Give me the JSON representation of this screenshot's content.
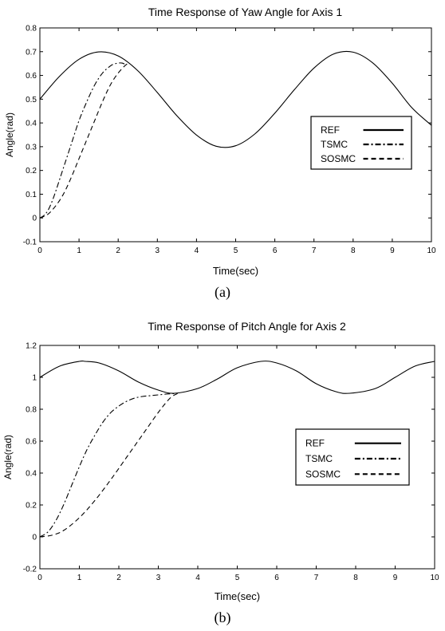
{
  "figure": {
    "caption_a": "(a)",
    "caption_b": "(b)"
  },
  "chart_data": [
    {
      "type": "line",
      "title": "Time Response of Yaw Angle for Axis 1",
      "xlabel": "Time(sec)",
      "ylabel": "Angle(rad)",
      "xlim": [
        0,
        10
      ],
      "ylim": [
        -0.1,
        0.8
      ],
      "xticks": [
        "0",
        "1",
        "2",
        "3",
        "4",
        "5",
        "6",
        "7",
        "8",
        "9",
        "10"
      ],
      "yticks": [
        "-0.1",
        "0",
        "0.1",
        "0.2",
        "0.3",
        "0.4",
        "0.5",
        "0.6",
        "0.7",
        "0.8"
      ],
      "grid": false,
      "legend_position": "right",
      "series": [
        {
          "name": "REF",
          "style": "solid",
          "x": [
            0,
            0.5,
            1,
            1.5,
            2,
            2.5,
            3,
            3.5,
            4,
            4.5,
            5,
            5.5,
            6,
            6.5,
            7,
            7.5,
            8,
            8.5,
            9,
            9.5,
            10
          ],
          "y": [
            0.5,
            0.596,
            0.668,
            0.699,
            0.682,
            0.62,
            0.528,
            0.43,
            0.349,
            0.302,
            0.304,
            0.355,
            0.441,
            0.54,
            0.631,
            0.69,
            0.698,
            0.653,
            0.567,
            0.464,
            0.39
          ]
        },
        {
          "name": "TSMC",
          "style": "dashdot",
          "x": [
            0,
            0.1,
            0.2,
            0.3,
            0.4,
            0.5,
            0.6,
            0.8,
            1.0,
            1.2,
            1.4,
            1.6,
            1.8,
            1.9,
            2.0,
            2.1,
            2.2
          ],
          "y": [
            0,
            0.01,
            0.03,
            0.065,
            0.11,
            0.16,
            0.21,
            0.31,
            0.41,
            0.49,
            0.56,
            0.61,
            0.64,
            0.648,
            0.652,
            0.652,
            0.645
          ]
        },
        {
          "name": "SOSMC",
          "style": "dashed",
          "x": [
            0,
            0.2,
            0.4,
            0.6,
            0.8,
            1.0,
            1.2,
            1.4,
            1.6,
            1.8,
            2.0,
            2.2,
            2.3
          ],
          "y": [
            0,
            0.015,
            0.05,
            0.1,
            0.17,
            0.25,
            0.33,
            0.41,
            0.49,
            0.56,
            0.61,
            0.645,
            0.65
          ]
        }
      ]
    },
    {
      "type": "line",
      "title": "Time Response of Pitch Angle for Axis 2",
      "xlabel": "Time(sec)",
      "ylabel": "Angle(rad)",
      "xlim": [
        0,
        10
      ],
      "ylim": [
        -0.2,
        1.2
      ],
      "xticks": [
        "0",
        "1",
        "2",
        "3",
        "4",
        "5",
        "6",
        "7",
        "8",
        "9",
        "10"
      ],
      "yticks": [
        "-0.2",
        "0",
        "0.2",
        "0.4",
        "0.6",
        "0.8",
        "1",
        "1.2"
      ],
      "grid": false,
      "legend_position": "right",
      "series": [
        {
          "name": "REF",
          "style": "solid",
          "x": [
            0,
            0.5,
            1,
            1.15,
            1.5,
            2,
            2.5,
            3,
            3.4,
            4,
            4.5,
            5,
            5.6,
            6,
            6.5,
            7,
            7.5,
            7.85,
            8.5,
            9,
            9.5,
            10
          ],
          "y": [
            1.0,
            1.07,
            1.1,
            1.1,
            1.09,
            1.04,
            0.97,
            0.92,
            0.9,
            0.93,
            0.99,
            1.06,
            1.1,
            1.09,
            1.04,
            0.96,
            0.91,
            0.9,
            0.93,
            1.0,
            1.07,
            1.1
          ]
        },
        {
          "name": "TSMC",
          "style": "dashdot",
          "x": [
            0,
            0.2,
            0.4,
            0.6,
            0.8,
            1.0,
            1.2,
            1.4,
            1.6,
            1.8,
            2.0,
            2.2,
            2.4,
            2.6,
            2.8,
            3.0,
            3.2,
            3.4
          ],
          "y": [
            0,
            0.03,
            0.1,
            0.2,
            0.32,
            0.44,
            0.55,
            0.64,
            0.72,
            0.78,
            0.82,
            0.85,
            0.87,
            0.88,
            0.885,
            0.89,
            0.895,
            0.898
          ]
        },
        {
          "name": "SOSMC",
          "style": "dashed",
          "x": [
            0,
            0.3,
            0.6,
            1.0,
            1.4,
            1.8,
            2.2,
            2.6,
            3.0,
            3.3,
            3.5
          ],
          "y": [
            0,
            0.01,
            0.04,
            0.12,
            0.23,
            0.36,
            0.5,
            0.64,
            0.78,
            0.87,
            0.9
          ]
        }
      ]
    }
  ]
}
